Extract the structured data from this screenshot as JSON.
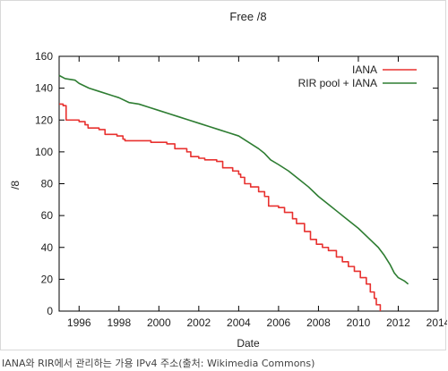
{
  "caption": "IANA와 RIR에서 관리하는 가용 IPv4 주소(출처: Wikimedia Commons)",
  "chart_data": {
    "type": "line",
    "title": "Free /8",
    "xlabel": "Date",
    "ylabel": "/8",
    "xlim": [
      1995,
      2014
    ],
    "ylim": [
      0,
      160
    ],
    "xticks": [
      1996,
      1998,
      2000,
      2002,
      2004,
      2006,
      2008,
      2010,
      2012,
      2014
    ],
    "yticks": [
      0,
      20,
      40,
      60,
      80,
      100,
      120,
      140,
      160
    ],
    "grid": false,
    "legend": "top-right",
    "series": [
      {
        "name": "IANA",
        "color": "#e8312f",
        "step": true,
        "points": [
          [
            1995.0,
            130
          ],
          [
            1995.2,
            129
          ],
          [
            1995.35,
            120
          ],
          [
            1996.0,
            119
          ],
          [
            1996.3,
            117
          ],
          [
            1996.45,
            115
          ],
          [
            1997.0,
            114
          ],
          [
            1997.3,
            111
          ],
          [
            1997.9,
            110
          ],
          [
            1998.2,
            108
          ],
          [
            1998.3,
            107
          ],
          [
            1999.6,
            106
          ],
          [
            2000.4,
            105
          ],
          [
            2000.8,
            102
          ],
          [
            2001.4,
            100
          ],
          [
            2001.6,
            97
          ],
          [
            2002.0,
            96
          ],
          [
            2002.3,
            95
          ],
          [
            2002.9,
            94
          ],
          [
            2003.2,
            90
          ],
          [
            2003.7,
            88
          ],
          [
            2004.0,
            86
          ],
          [
            2004.1,
            84
          ],
          [
            2004.3,
            80
          ],
          [
            2004.6,
            78
          ],
          [
            2005.0,
            75
          ],
          [
            2005.3,
            72
          ],
          [
            2005.5,
            66
          ],
          [
            2006.0,
            65
          ],
          [
            2006.3,
            62
          ],
          [
            2006.7,
            58
          ],
          [
            2006.9,
            55
          ],
          [
            2007.3,
            50
          ],
          [
            2007.6,
            45
          ],
          [
            2007.9,
            42
          ],
          [
            2008.2,
            40
          ],
          [
            2008.5,
            38
          ],
          [
            2008.9,
            34
          ],
          [
            2009.2,
            31
          ],
          [
            2009.5,
            28
          ],
          [
            2009.8,
            25
          ],
          [
            2010.1,
            21
          ],
          [
            2010.4,
            17
          ],
          [
            2010.6,
            12
          ],
          [
            2010.8,
            8
          ],
          [
            2010.9,
            4
          ],
          [
            2011.1,
            0
          ]
        ]
      },
      {
        "name": "RIR pool + IANA",
        "color": "#2e7d32",
        "step": false,
        "points": [
          [
            1995.0,
            148
          ],
          [
            1995.3,
            146
          ],
          [
            1995.8,
            145
          ],
          [
            1996.0,
            143
          ],
          [
            1996.5,
            140
          ],
          [
            1997.0,
            138
          ],
          [
            1997.5,
            136
          ],
          [
            1998.0,
            134
          ],
          [
            1998.5,
            131
          ],
          [
            1999.0,
            130
          ],
          [
            1999.5,
            128
          ],
          [
            2000.0,
            126
          ],
          [
            2000.5,
            124
          ],
          [
            2001.0,
            122
          ],
          [
            2001.5,
            120
          ],
          [
            2002.0,
            118
          ],
          [
            2002.5,
            116
          ],
          [
            2003.0,
            114
          ],
          [
            2003.5,
            112
          ],
          [
            2004.0,
            110
          ],
          [
            2004.5,
            106
          ],
          [
            2005.0,
            102
          ],
          [
            2005.3,
            99
          ],
          [
            2005.6,
            95
          ],
          [
            2006.0,
            92
          ],
          [
            2006.5,
            88
          ],
          [
            2007.0,
            83
          ],
          [
            2007.5,
            78
          ],
          [
            2008.0,
            72
          ],
          [
            2008.5,
            67
          ],
          [
            2009.0,
            62
          ],
          [
            2009.5,
            57
          ],
          [
            2010.0,
            52
          ],
          [
            2010.5,
            46
          ],
          [
            2011.0,
            40
          ],
          [
            2011.3,
            35
          ],
          [
            2011.6,
            29
          ],
          [
            2011.8,
            24
          ],
          [
            2012.0,
            21
          ],
          [
            2012.3,
            19
          ],
          [
            2012.5,
            17
          ]
        ]
      }
    ]
  }
}
